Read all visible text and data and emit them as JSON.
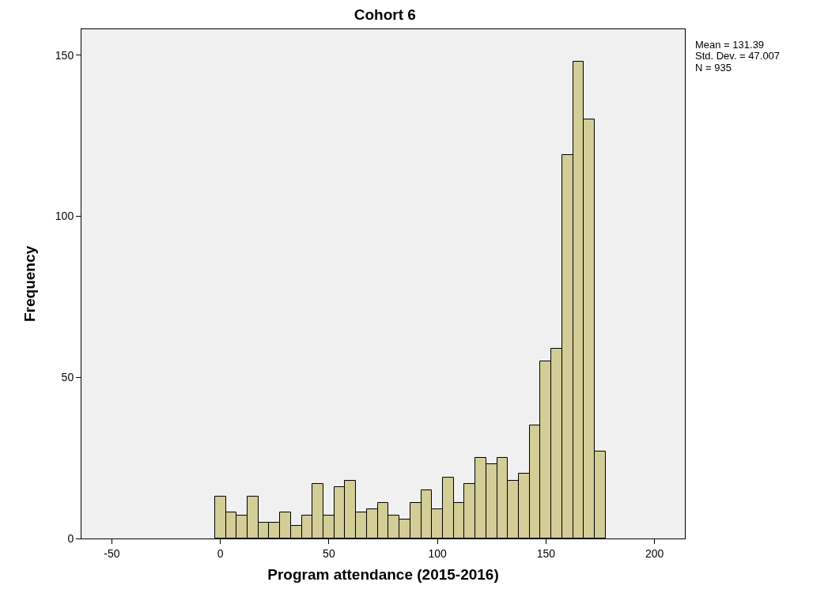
{
  "chart_data": {
    "type": "histogram",
    "title": "Cohort 6",
    "xlabel": "Program attendance (2015-2016)",
    "ylabel": "Frequency",
    "annotations": [
      "Mean = 131.39",
      "Std. Dev. = 47.007",
      "N = 935"
    ],
    "bins": [
      -2.5,
      2.5,
      7.5,
      12.5,
      17.5,
      22.5,
      27.5,
      32.5,
      37.5,
      42.5,
      47.5,
      52.5,
      57.5,
      62.5,
      67.5,
      72.5,
      77.5,
      82.5,
      87.5,
      92.5,
      97.5,
      102.5,
      107.5,
      112.5,
      117.5,
      122.5,
      127.5,
      132.5,
      137.5,
      142.5,
      147.5,
      152.5,
      157.5,
      162.5,
      167.5,
      172.5,
      177.5
    ],
    "values": [
      13,
      8,
      7,
      13,
      5,
      5,
      8,
      4,
      7,
      17,
      7,
      16,
      18,
      8,
      9,
      11,
      7,
      6,
      11,
      15,
      9,
      19,
      11,
      17,
      25,
      23,
      25,
      18,
      20,
      35,
      55,
      59,
      119,
      148,
      130,
      27
    ],
    "color": "#d3cd97",
    "xlim": [
      -64,
      214
    ],
    "xticks": [
      -50,
      0,
      50,
      100,
      150,
      200
    ],
    "ylim": [
      0,
      158
    ],
    "yticks": [
      0,
      50,
      100,
      150
    ]
  }
}
